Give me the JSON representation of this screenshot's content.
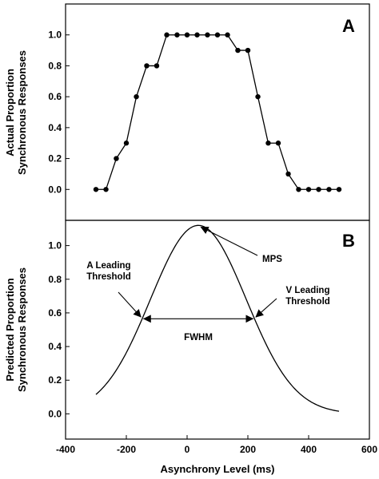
{
  "chart_data": [
    {
      "panel": "A",
      "type": "line",
      "markers": true,
      "panel_label": "A",
      "ylabel": "Actual Proportion\nSynchronous Responses",
      "ylim": [
        -0.2,
        1.2
      ],
      "yticks": [
        0.0,
        0.2,
        0.4,
        0.6,
        0.8,
        1.0
      ],
      "yticklabels": [
        "0.0",
        "0.2",
        "0.4",
        "0.6",
        "0.8",
        "1.0"
      ],
      "xlim": [
        -400,
        600
      ],
      "series": [
        {
          "x": [
            -300,
            -267,
            -233,
            -200,
            -167,
            -133,
            -100,
            -67,
            -33,
            0,
            33,
            67,
            100,
            133,
            167,
            200,
            233,
            267,
            300,
            333,
            367,
            400,
            433,
            467,
            500
          ],
          "y": [
            0.0,
            0.0,
            0.2,
            0.3,
            0.6,
            0.8,
            0.8,
            1.0,
            1.0,
            1.0,
            1.0,
            1.0,
            1.0,
            1.0,
            0.9,
            0.9,
            0.6,
            0.3,
            0.3,
            0.1,
            0.0,
            0.0,
            0.0,
            0.0,
            0.0
          ]
        }
      ]
    },
    {
      "panel": "B",
      "type": "line",
      "markers": false,
      "panel_label": "B",
      "ylabel": "Predicted Proportion\nSynchronous Responses",
      "xlabel": "Asynchrony Level (ms)",
      "ylim": [
        -0.15,
        1.15
      ],
      "yticks": [
        0.0,
        0.2,
        0.4,
        0.6,
        0.8,
        1.0
      ],
      "yticklabels": [
        "0.0",
        "0.2",
        "0.4",
        "0.6",
        "0.8",
        "1.0"
      ],
      "xlim": [
        -400,
        600
      ],
      "xticks": [
        -400,
        -200,
        0,
        200,
        400,
        600
      ],
      "xticklabels": [
        "-400",
        "-200",
        "0",
        "200",
        "400",
        "600"
      ],
      "series": [
        {
          "curve": "gaussian",
          "x_range": [
            -300,
            500
          ],
          "peak": 1.12,
          "mean": 37,
          "sd": 158
        }
      ],
      "annotations": [
        {
          "id": "mps",
          "text": [
            "MPS"
          ],
          "x": 37,
          "y": 1.12
        },
        {
          "id": "a-threshold",
          "text": [
            "A Leading",
            "Threshold"
          ],
          "x": -149,
          "y": 0.565
        },
        {
          "id": "v-threshold",
          "text": [
            "V Leading",
            "Threshold"
          ],
          "x": 223,
          "y": 0.565
        },
        {
          "id": "fwhm",
          "text": [
            "FWHM"
          ],
          "x_from": -149,
          "x_to": 223,
          "y": 0.565
        }
      ]
    }
  ]
}
